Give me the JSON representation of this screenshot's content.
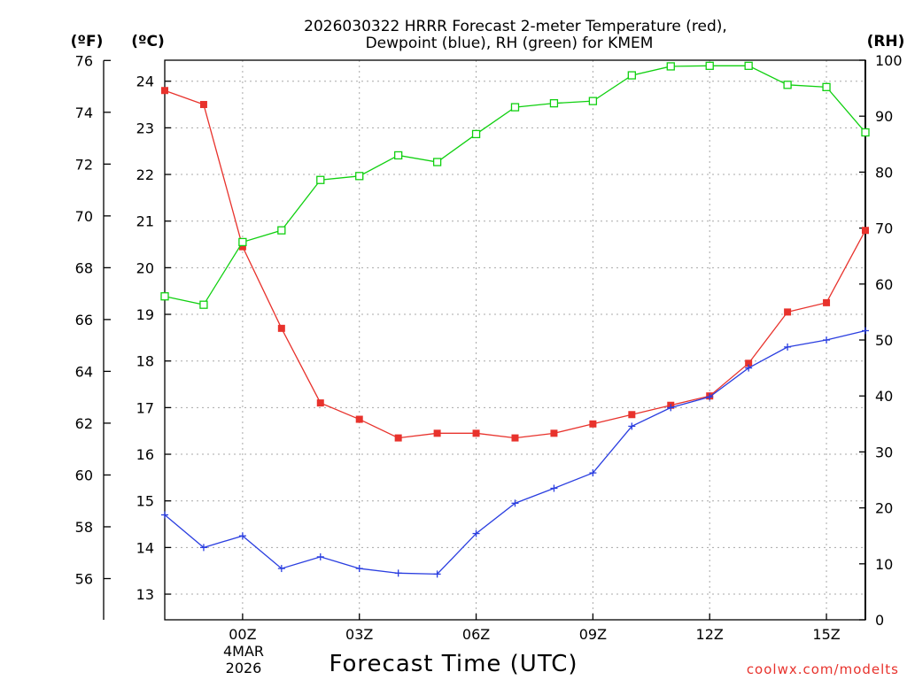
{
  "chart_data": {
    "type": "line",
    "title_line1": "2026030322 HRRR Forecast 2-meter Temperature (red),",
    "title_line2": "Dewpoint (blue), RH (green) for KMEM",
    "xlabel": "Forecast Time (UTC)",
    "credit": "coolwx.com/modelts",
    "unit_left_f": "(ºF)",
    "unit_left_c": "(ºC)",
    "unit_right": "(RH)",
    "x_hours": [
      -2,
      -1,
      0,
      1,
      2,
      3,
      4,
      5,
      6,
      7,
      8,
      9,
      10,
      11,
      12,
      13,
      14,
      15,
      16
    ],
    "x_range": [
      -2,
      16
    ],
    "x_ticks": [
      {
        "hour": 0,
        "label": "00Z"
      },
      {
        "hour": 3,
        "label": "03Z"
      },
      {
        "hour": 6,
        "label": "06Z"
      },
      {
        "hour": 9,
        "label": "09Z"
      },
      {
        "hour": 12,
        "label": "12Z"
      },
      {
        "hour": 15,
        "label": "15Z"
      }
    ],
    "date_line1": "4MAR",
    "date_line2": "2026",
    "celsius_axis": {
      "range": [
        12.45,
        24.45
      ],
      "ticks": [
        13,
        14,
        15,
        16,
        17,
        18,
        19,
        20,
        21,
        22,
        23,
        24
      ]
    },
    "fahrenheit_ticks": [
      56,
      58,
      60,
      62,
      64,
      66,
      68,
      70,
      72,
      74,
      76
    ],
    "rh_axis": {
      "range": [
        0,
        100
      ],
      "ticks": [
        0,
        10,
        20,
        30,
        40,
        50,
        60,
        70,
        80,
        90,
        100
      ]
    },
    "series": [
      {
        "name": "Temperature",
        "unit": "C",
        "color": "#e8322c",
        "marker": "filled-square",
        "values": [
          23.8,
          23.5,
          20.45,
          18.7,
          17.1,
          16.75,
          16.35,
          16.45,
          16.45,
          16.35,
          16.45,
          16.65,
          16.85,
          17.05,
          17.25,
          17.95,
          19.05,
          19.25,
          20.8
        ]
      },
      {
        "name": "Dewpoint",
        "unit": "C",
        "color": "#2a3ee0",
        "marker": "plus",
        "values": [
          14.7,
          14.0,
          14.25,
          13.55,
          13.8,
          13.55,
          13.45,
          13.43,
          14.3,
          14.95,
          15.27,
          15.6,
          16.6,
          17.0,
          17.23,
          17.85,
          18.3,
          18.45,
          18.65
        ]
      },
      {
        "name": "RH",
        "unit": "%",
        "color": "#10d010",
        "marker": "open-square",
        "values": [
          57.8,
          56.3,
          67.5,
          69.6,
          78.6,
          79.3,
          83.0,
          81.8,
          86.8,
          91.6,
          92.3,
          92.7,
          97.3,
          98.9,
          99.0,
          99.0,
          95.6,
          95.2,
          87.1
        ]
      }
    ]
  }
}
